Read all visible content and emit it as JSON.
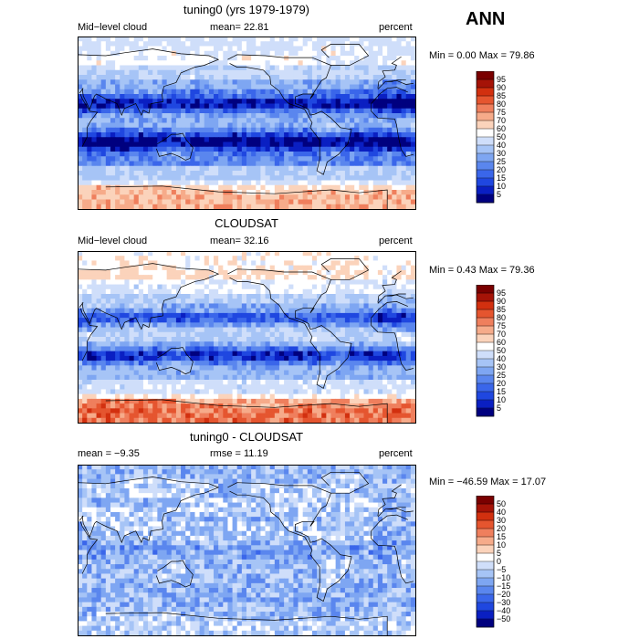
{
  "season": "ANN",
  "colors": {
    "ramp_levels": [
      "#00007f",
      "#0a1fc2",
      "#1f47e0",
      "#3a66ea",
      "#5a86ee",
      "#7ea6f2",
      "#a6c4f6",
      "#cfdefa",
      "#ffffff",
      "#fbd3bb",
      "#f6ab8a",
      "#ef7f5d",
      "#e5552f",
      "#d2300f",
      "#a51307",
      "#7a0000"
    ],
    "diff_levels": [
      "#00007f",
      "#0a1fc2",
      "#1f47e0",
      "#3a66ea",
      "#5a86ee",
      "#7ea6f2",
      "#a6c4f6",
      "#cfdefa",
      "#ffffff",
      "#fbd3bb",
      "#f6ab8a",
      "#ef7f5d",
      "#e5552f",
      "#d2300f",
      "#a51307",
      "#7a0000"
    ]
  },
  "panels": [
    {
      "title": "tuning0 (yrs 1979-1979)",
      "left": "Mid−level cloud",
      "mid": "mean=  22.81",
      "right": "percent",
      "minmax": "Min =   0.00 Max =  79.86",
      "colorbar_labels": [
        "95",
        "90",
        "85",
        "80",
        "75",
        "70",
        "60",
        "50",
        "40",
        "30",
        "25",
        "20",
        "15",
        "10",
        "5"
      ]
    },
    {
      "title": "CLOUDSAT",
      "left": "Mid−level cloud",
      "mid": "mean=  32.16",
      "right": "percent",
      "minmax": "Min =   0.43 Max =  79.36",
      "colorbar_labels": [
        "95",
        "90",
        "85",
        "80",
        "75",
        "70",
        "60",
        "50",
        "40",
        "30",
        "25",
        "20",
        "15",
        "10",
        "5"
      ]
    },
    {
      "title": "tuning0 - CLOUDSAT",
      "left": "mean =  −9.35",
      "mid": "rmse =  11.19",
      "right": "percent",
      "minmax": "Min = −46.59 Max =  17.07",
      "colorbar_labels": [
        "50",
        "40",
        "30",
        "20",
        "15",
        "10",
        "5",
        "0",
        "−5",
        "−10",
        "−15",
        "−20",
        "−30",
        "−40",
        "−50"
      ]
    }
  ]
}
